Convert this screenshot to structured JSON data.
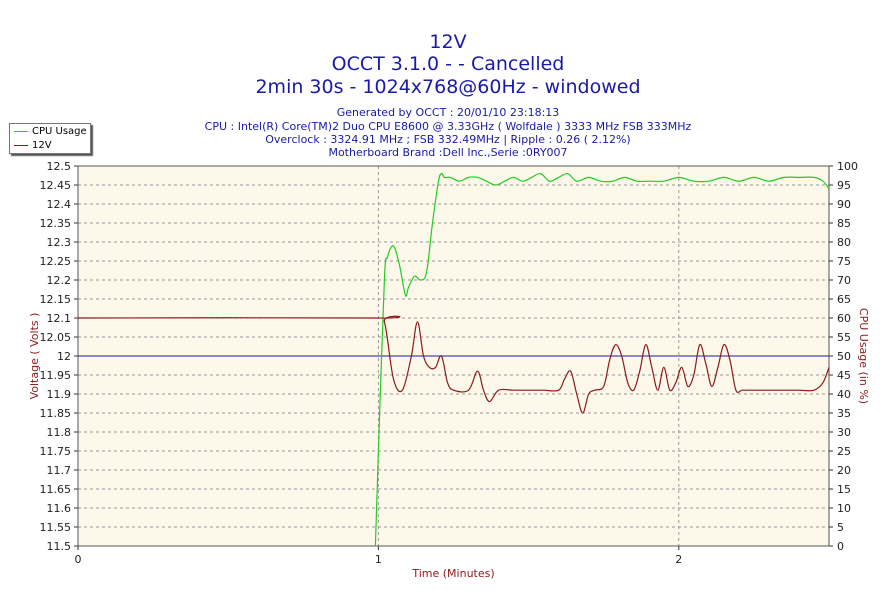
{
  "header": {
    "title_line1": "12V",
    "title_line2": "OCCT 3.1.0 -  - Cancelled",
    "title_line3": "2min 30s - 1024x768@60Hz - windowed",
    "info_line1": "Generated by OCCT : 20/01/10 23:18:13",
    "info_line2": "CPU : Intel(R) Core(TM)2 Duo CPU E8600 @ 3.33GHz ( Wolfdale ) 3333 MHz FSB 333MHz",
    "info_line3": "Overclock : 3324.91 MHz ; FSB 332.49MHz | Ripple : 0.26 ( 2.12%)",
    "info_line4": "Motherboard Brand :Dell Inc.,Serie :0RY007"
  },
  "legend": {
    "placement": "top-left",
    "items": [
      {
        "label": "CPU Usage",
        "color": "#22cc22"
      },
      {
        "label": "12V",
        "color": "#8b1a1a"
      }
    ]
  },
  "colors": {
    "plot_bg": "#fdf8ea",
    "grid": "#999999",
    "voltage_axis": "#8b1a1a",
    "reference_line": "#1a1aa8",
    "title": "#1a1aa8"
  },
  "chart_data": {
    "type": "line",
    "xlabel": "Time (Minutes)",
    "ylabel_left": "Voltage ( Volts )",
    "ylabel_right": "CPU Usage (in %)",
    "xlim": [
      0,
      2.5
    ],
    "ylim_left": [
      11.5,
      12.5
    ],
    "ylim_right": [
      0,
      100
    ],
    "x_ticks": [
      "0",
      "1",
      "2"
    ],
    "y_left_ticks": [
      "12.5",
      "12.45",
      "12.4",
      "12.35",
      "12.3",
      "12.25",
      "12.2",
      "12.15",
      "12.1",
      "12.05",
      "12",
      "11.95",
      "11.9",
      "11.85",
      "11.8",
      "11.75",
      "11.7",
      "11.65",
      "11.6",
      "11.55",
      "11.5"
    ],
    "y_right_ticks": [
      "100",
      "95",
      "90",
      "85",
      "80",
      "75",
      "70",
      "65",
      "60",
      "55",
      "50",
      "45",
      "40",
      "35",
      "30",
      "25",
      "20",
      "15",
      "10",
      "5",
      "0"
    ],
    "grid": true,
    "reference_line_y": 12,
    "series": [
      {
        "name": "CPU Usage",
        "axis": "right",
        "color": "#22cc22",
        "x": [
          0.99,
          1.0,
          1.02,
          1.03,
          1.05,
          1.07,
          1.09,
          1.1,
          1.12,
          1.14,
          1.16,
          1.18,
          1.2,
          1.21,
          1.22,
          1.24,
          1.27,
          1.3,
          1.33,
          1.36,
          1.39,
          1.42,
          1.45,
          1.48,
          1.51,
          1.54,
          1.57,
          1.6,
          1.63,
          1.66,
          1.7,
          1.74,
          1.78,
          1.82,
          1.86,
          1.9,
          1.95,
          2.0,
          2.05,
          2.1,
          2.15,
          2.2,
          2.25,
          2.3,
          2.35,
          2.4,
          2.45,
          2.48,
          2.5
        ],
        "values": [
          0,
          25,
          70,
          76,
          79,
          74,
          66,
          68,
          71,
          70,
          72,
          85,
          96,
          98,
          97,
          97,
          96,
          97,
          97,
          96,
          95,
          96,
          97,
          96,
          97,
          98,
          96,
          97,
          98,
          96,
          97,
          96,
          96,
          97,
          96,
          96,
          96,
          97,
          96,
          96,
          97,
          96,
          97,
          96,
          97,
          97,
          97,
          96,
          94
        ]
      },
      {
        "name": "12V",
        "axis": "left",
        "color": "#8b1a1a",
        "x": [
          0,
          0.99,
          1.02,
          1.05,
          1.08,
          1.11,
          1.13,
          1.15,
          1.17,
          1.19,
          1.21,
          1.23,
          1.25,
          1.3,
          1.33,
          1.35,
          1.37,
          1.4,
          1.45,
          1.5,
          1.55,
          1.6,
          1.62,
          1.64,
          1.66,
          1.68,
          1.7,
          1.72,
          1.75,
          1.77,
          1.79,
          1.81,
          1.83,
          1.85,
          1.87,
          1.89,
          1.91,
          1.93,
          1.95,
          1.97,
          1.99,
          2.01,
          2.03,
          2.05,
          2.07,
          2.09,
          2.11,
          2.13,
          2.15,
          2.17,
          2.19,
          2.21,
          2.23,
          2.25,
          2.27,
          2.3,
          2.35,
          2.4,
          2.45,
          2.48,
          2.5
        ],
        "values": [
          12.1,
          12.1,
          12.09,
          11.94,
          11.91,
          12.0,
          12.09,
          12.0,
          11.97,
          11.97,
          12.0,
          11.93,
          11.91,
          11.91,
          11.96,
          11.91,
          11.88,
          11.91,
          11.91,
          11.91,
          11.91,
          11.91,
          11.94,
          11.96,
          11.9,
          11.85,
          11.9,
          11.91,
          11.92,
          11.99,
          12.03,
          12.0,
          11.93,
          11.91,
          11.96,
          12.03,
          11.97,
          11.91,
          11.97,
          11.91,
          11.93,
          11.97,
          11.92,
          11.95,
          12.03,
          11.98,
          11.92,
          11.97,
          12.03,
          11.99,
          11.91,
          11.91,
          11.91,
          11.91,
          11.91,
          11.91,
          11.91,
          11.91,
          11.91,
          11.93,
          11.97
        ]
      }
    ]
  }
}
